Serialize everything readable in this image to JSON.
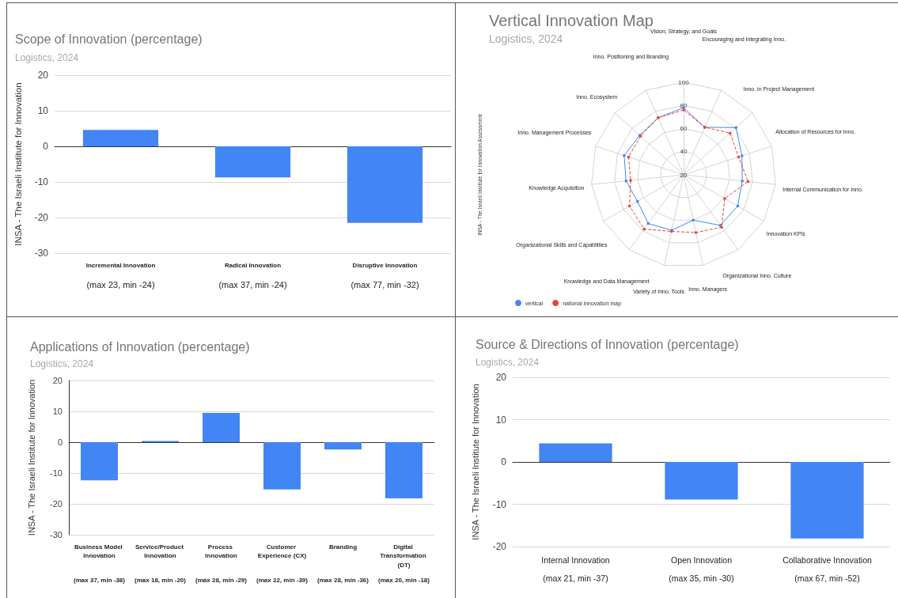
{
  "chart_data": [
    {
      "type": "bar",
      "title": "Scope of Innovation (percentage)",
      "subtitle": "Logistics, 2024",
      "ylabel": "INSA - The Israeli Institute for Innovation",
      "categories": [
        "Incremental Innovation",
        "Radical Innovation",
        "Disruptive Innovation"
      ],
      "values": [
        4.6,
        -8.7,
        -21.5
      ],
      "color": "#4285f4",
      "ylim": [
        -30,
        20
      ],
      "yticks": [
        -30,
        -20,
        -10,
        0,
        10,
        20
      ],
      "grid": "y",
      "annotations": [
        "(max 23, min -24)",
        "(max 37, min -24)",
        "(max 77, min -32)"
      ]
    },
    {
      "type": "radar",
      "title": "Vertical Innovation Map",
      "subtitle": "Logistics, 2024",
      "ylabel": "INSA - The Israeli Institute for Innovation Assessment",
      "categories": [
        "Vision, Strategy, and Goals",
        "Encouraging and Integrating Inno.",
        "Inno. in Project Management",
        "Allocation of Resources for Inno.",
        "Internal Communication for Inno.",
        "Innovation KPIs",
        "Organizational Inno. Culture",
        "Inno. Managers",
        "Variety of Inno. Tools",
        "Knowledge and Data Management",
        "Organizational Skills and Capabilities",
        "Knowledge Acquisition",
        "Inno. Management Processes",
        "Inno. Ecosystem",
        "Inno. Positioning and Branding"
      ],
      "series": [
        {
          "name": "vertical",
          "color": "#4285f4",
          "line_style": "solid",
          "values": [
            78,
            65,
            81,
            73,
            71,
            74,
            74,
            60,
            69,
            72,
            66,
            70,
            74,
            71,
            74
          ]
        },
        {
          "name": "national innovation map",
          "color": "#ea4335",
          "line_style": "dashed",
          "values": [
            76,
            65,
            74,
            70,
            76,
            61,
            76,
            71,
            70,
            78,
            74,
            66,
            70,
            70,
            74
          ]
        }
      ],
      "ylim": [
        20,
        100
      ],
      "yticks": [
        20,
        40,
        60,
        80,
        100
      ],
      "grid": true,
      "legend": "bottom left",
      "marker": "circle"
    },
    {
      "type": "bar",
      "title": "Applications of Innovation (percentage)",
      "subtitle": "Logistics, 2024",
      "ylabel": "INSA - The Israeli Institute for Innovation",
      "categories": [
        "Business Model Innovation",
        "Service/Product Innovation",
        "Process Innovation",
        "Customer Experience (CX)",
        "Branding",
        "Digital Transformation (DT)"
      ],
      "values": [
        -12.4,
        0.4,
        9.5,
        -15.3,
        -2.4,
        -18.2
      ],
      "color": "#4285f4",
      "ylim": [
        -30,
        20
      ],
      "yticks": [
        -30,
        -20,
        -10,
        0,
        10,
        20
      ],
      "grid": "y",
      "annotations": [
        "(max 37, min -38)",
        "(max 18, min -20)",
        "(max 28, min -29)",
        "(max 22, min -39)",
        "(max 28, min -36)",
        "(max 20, min -18)"
      ]
    },
    {
      "type": "bar",
      "title": "Source & Directions of Innovation (percentage)",
      "subtitle": "Logistics, 2024",
      "ylabel": "INSA - The Israeli Institute for Innovation",
      "categories": [
        "Internal Innovation",
        "Open Innovation",
        "Collaborative Innovation"
      ],
      "values": [
        4.4,
        -8.9,
        -18.1
      ],
      "color": "#4285f4",
      "ylim": [
        -20,
        20
      ],
      "yticks": [
        -20,
        -10,
        0,
        10,
        20
      ],
      "grid": "y",
      "annotations": [
        "(max 21, min -37)",
        "(max 35, min -30)",
        "(max 67, min -52)"
      ]
    }
  ]
}
